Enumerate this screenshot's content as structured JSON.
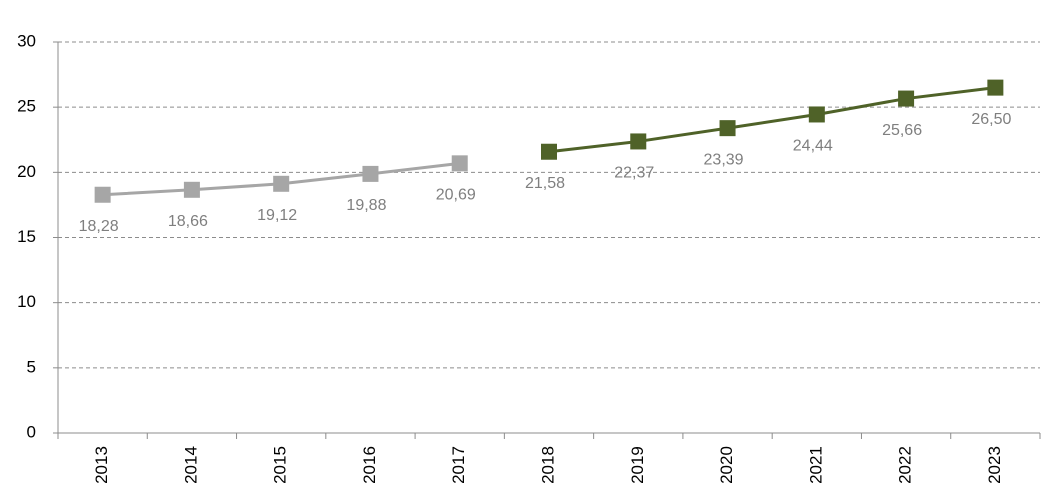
{
  "chart_data": {
    "type": "line",
    "categories": [
      "2013",
      "2014",
      "2015",
      "2016",
      "2017",
      "2018",
      "2019",
      "2020",
      "2021",
      "2022",
      "2023"
    ],
    "series": [
      {
        "color": "#a6a6a6",
        "values": [
          18.28,
          18.66,
          19.12,
          19.88,
          20.69,
          null,
          null,
          null,
          null,
          null,
          null
        ],
        "value_labels": [
          "18,28",
          "18,66",
          "19,12",
          "19,88",
          "20,69",
          null,
          null,
          null,
          null,
          null,
          null
        ]
      },
      {
        "color": "#4f6228",
        "values": [
          null,
          null,
          null,
          null,
          null,
          21.58,
          22.37,
          23.39,
          24.44,
          25.66,
          26.5
        ],
        "value_labels": [
          null,
          null,
          null,
          null,
          null,
          "21,58",
          "22,37",
          "23,39",
          "24,44",
          "25,66",
          "26,50"
        ]
      }
    ],
    "ylim": [
      0,
      30
    ],
    "yticks": [
      0,
      5,
      10,
      15,
      20,
      25,
      30
    ],
    "grid": true
  }
}
